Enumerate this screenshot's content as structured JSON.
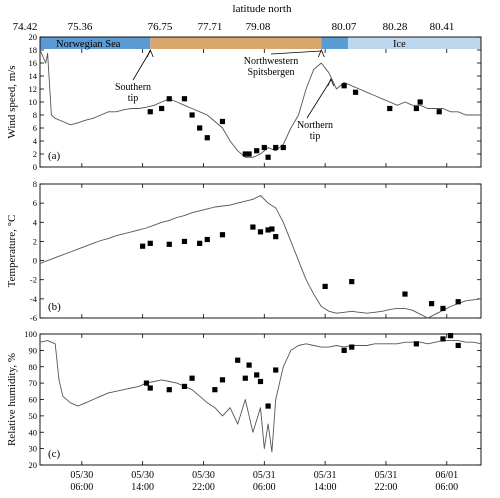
{
  "chart_data": [
    {
      "type": "line",
      "panel_label": "(a)",
      "ylabel": "Wind speed, m/s",
      "xlim_hours_from_start": [
        0,
        116
      ],
      "ylim": [
        0,
        20
      ],
      "yticks": [
        0,
        2,
        4,
        6,
        8,
        10,
        12,
        14,
        16,
        18,
        20
      ],
      "top_axis": {
        "label": "latitude north",
        "tick_labels": [
          "74.42",
          "75.36",
          "76.75",
          "77.71",
          "79.08",
          "80.07",
          "80.28",
          "80.41"
        ]
      },
      "region_bar": [
        {
          "name": "Norwegian Sea",
          "from": 0,
          "to": 29,
          "color": "#5b9bd5"
        },
        {
          "name": "",
          "from": 29,
          "to": 74,
          "color": "#d9a86c"
        },
        {
          "name": "",
          "from": 74,
          "to": 81,
          "color": "#5b9bd5"
        },
        {
          "name": "Ice",
          "from": 81,
          "to": 116,
          "color": "#bdd7ee"
        }
      ],
      "annotations": [
        {
          "text": [
            "Southern",
            "tip"
          ],
          "x": 29
        },
        {
          "text": [
            "Northwestern",
            "Spitsbergen"
          ],
          "x": 74
        },
        {
          "text": [
            "Northern",
            "tip"
          ],
          "x": 76.5
        }
      ],
      "series": [
        {
          "style": "line",
          "color": "#555555",
          "x": [
            0,
            1.5,
            2,
            3,
            4,
            6,
            8,
            10,
            12,
            14,
            16,
            18,
            20,
            22,
            24,
            26,
            28,
            30,
            32,
            34,
            36,
            38,
            40,
            42,
            44,
            46,
            48,
            50,
            52,
            54,
            56,
            58,
            60,
            62,
            64,
            66,
            68,
            70,
            72,
            74,
            76,
            78,
            80,
            82,
            84,
            86,
            88,
            90,
            92,
            94,
            96,
            98,
            100,
            102,
            104,
            106,
            108,
            110,
            112,
            114,
            116
          ],
          "y": [
            18,
            16,
            17.5,
            8,
            7.5,
            7,
            6.5,
            6.8,
            7.2,
            7.5,
            8,
            8.5,
            8.5,
            8.8,
            9,
            9,
            9.2,
            9.5,
            10,
            10.5,
            10,
            9.5,
            9,
            8.5,
            8,
            7,
            6,
            4,
            2.5,
            1.5,
            1.5,
            2,
            3,
            2.5,
            3.5,
            6,
            8,
            12,
            15,
            16,
            14.5,
            12,
            13,
            12.5,
            12,
            11.5,
            11,
            10.5,
            10,
            9.5,
            10,
            9.5,
            9.5,
            9,
            9,
            9,
            8.5,
            8.5,
            8,
            8,
            8
          ]
        },
        {
          "style": "markers",
          "color": "#000000",
          "x": [
            29,
            32,
            34,
            38,
            40,
            42,
            44,
            48,
            54,
            55,
            57,
            59,
            60,
            62,
            64,
            80,
            83,
            92,
            99,
            100,
            105
          ],
          "y": [
            8.5,
            9,
            10.5,
            10.5,
            8,
            6,
            4.5,
            7,
            2,
            2,
            2.5,
            3,
            1.5,
            3,
            3,
            12.5,
            11.5,
            9,
            9,
            10,
            8.5
          ]
        }
      ]
    },
    {
      "type": "line",
      "panel_label": "(b)",
      "ylabel": "Temperature, °C",
      "xlim_hours_from_start": [
        0,
        116
      ],
      "ylim": [
        -6,
        8
      ],
      "yticks": [
        -6,
        -4,
        -2,
        0,
        2,
        4,
        6,
        8
      ],
      "series": [
        {
          "style": "line",
          "color": "#555555",
          "x": [
            0,
            2,
            4,
            6,
            8,
            10,
            12,
            14,
            16,
            18,
            20,
            22,
            24,
            26,
            28,
            30,
            32,
            34,
            36,
            38,
            40,
            42,
            44,
            46,
            48,
            50,
            52,
            54,
            56,
            58,
            60,
            62,
            64,
            66,
            68,
            70,
            72,
            74,
            76,
            78,
            80,
            82,
            84,
            86,
            88,
            90,
            92,
            94,
            96,
            98,
            100,
            102,
            104,
            106,
            108,
            110,
            112,
            114,
            116
          ],
          "y": [
            -0.3,
            0,
            0.3,
            0.6,
            0.9,
            1.2,
            1.5,
            1.8,
            2.1,
            2.3,
            2.6,
            2.8,
            3,
            3.2,
            3.4,
            3.7,
            4,
            4.2,
            4.5,
            4.7,
            5,
            5.2,
            5.4,
            5.6,
            5.7,
            5.8,
            6,
            6.2,
            6.4,
            6.8,
            6,
            5.5,
            4,
            2,
            0,
            -2,
            -3.5,
            -4.8,
            -5.3,
            -5.5,
            -5.4,
            -5.3,
            -5.4,
            -5.5,
            -5.4,
            -5.3,
            -5.1,
            -5,
            -5,
            -5.2,
            -5.6,
            -6,
            -5.6,
            -5.2,
            -4.8,
            -4.5,
            -4.2,
            -4.1,
            -4
          ]
        },
        {
          "style": "markers",
          "color": "#000000",
          "x": [
            27,
            29,
            34,
            38,
            42,
            44,
            48,
            56,
            58,
            60,
            61,
            62,
            75,
            82,
            96,
            103,
            106,
            110
          ],
          "y": [
            1.5,
            1.8,
            1.7,
            2,
            1.8,
            2.2,
            2.7,
            3.5,
            3,
            3.2,
            3.3,
            2.5,
            -2.7,
            -2.2,
            -3.5,
            -4.5,
            -5,
            -4.3
          ]
        }
      ]
    },
    {
      "type": "line",
      "panel_label": "(c)",
      "ylabel": "Relative humidity, %",
      "xlabel": "",
      "xlim_hours_from_start": [
        0,
        116
      ],
      "ylim": [
        20,
        100
      ],
      "yticks": [
        20,
        30,
        40,
        50,
        60,
        70,
        80,
        90,
        100
      ],
      "xticks_hours": [
        11,
        27,
        43,
        59,
        75,
        91,
        107
      ],
      "xtick_labels": [
        [
          "05/30",
          "06:00"
        ],
        [
          "05/30",
          "14:00"
        ],
        [
          "05/30",
          "22:00"
        ],
        [
          "05/31",
          "06:00"
        ],
        [
          "05/31",
          "14:00"
        ],
        [
          "05/31",
          "22:00"
        ],
        [
          "06/01",
          "06:00"
        ]
      ],
      "series": [
        {
          "style": "line",
          "color": "#555555",
          "x": [
            0,
            2,
            4,
            5,
            6,
            8,
            10,
            12,
            14,
            16,
            18,
            20,
            22,
            24,
            26,
            28,
            30,
            32,
            34,
            36,
            38,
            40,
            42,
            44,
            46,
            48,
            50,
            52,
            54,
            56,
            58,
            59,
            60,
            61,
            62,
            64,
            66,
            68,
            70,
            72,
            74,
            76,
            78,
            80,
            82,
            84,
            86,
            88,
            90,
            92,
            94,
            96,
            98,
            100,
            102,
            104,
            106,
            108,
            110,
            112,
            114,
            116
          ],
          "y": [
            95,
            96,
            94,
            72,
            62,
            58,
            56,
            58,
            60,
            62,
            64,
            65,
            66,
            67,
            68,
            70,
            71,
            72,
            71,
            70,
            68,
            66,
            62,
            58,
            55,
            50,
            55,
            45,
            60,
            40,
            55,
            30,
            45,
            28,
            60,
            80,
            90,
            93,
            94,
            93,
            92,
            92,
            93,
            92,
            93,
            93,
            93,
            94,
            94,
            94,
            94,
            95,
            95,
            95,
            94,
            95,
            96,
            96,
            96,
            95,
            95,
            94
          ]
        },
        {
          "style": "markers",
          "color": "#000000",
          "x": [
            28,
            29,
            34,
            38,
            40,
            46,
            48,
            52,
            54,
            55,
            57,
            58,
            60,
            62,
            80,
            82,
            99,
            106,
            108,
            110
          ],
          "y": [
            70,
            67,
            66,
            68,
            73,
            66,
            72,
            84,
            73,
            81,
            75,
            71,
            56,
            78,
            90,
            92,
            94,
            97,
            99,
            93
          ]
        }
      ]
    }
  ]
}
